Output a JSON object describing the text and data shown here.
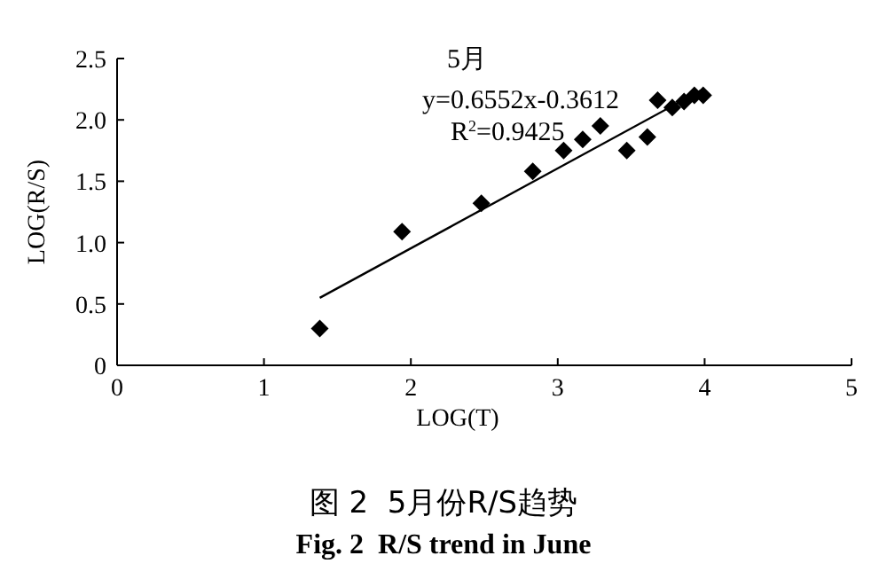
{
  "chart_data": {
    "type": "scatter",
    "title": "图 2  5月份R/S趋势",
    "subtitle": "Fig. 2  R/S trend in June",
    "xlabel": "LOG(T)",
    "ylabel": "LOG(R/S)",
    "annotations": [
      "5月",
      "y=0.6552x-0.3612",
      "R$^{2}$=0.9425"
    ],
    "marker": "diamond",
    "grid": false,
    "xlim": [
      0,
      5
    ],
    "xticks": [
      0,
      1,
      2,
      3,
      4,
      5
    ],
    "ylim": [
      0,
      2.5
    ],
    "yticks": [
      0,
      {
        "value": 0.5,
        "label": "0.5"
      },
      {
        "value": 1,
        "label": "1.0"
      },
      {
        "value": 1.5,
        "label": "1.5"
      },
      {
        "value": 2,
        "label": "2.0"
      },
      {
        "value": 2.5,
        "label": "2.5"
      }
    ],
    "series": [
      {
        "color": "#000000",
        "x": [
          1.38,
          1.94,
          2.48,
          2.83,
          3.04,
          3.17,
          3.29,
          3.47,
          3.61,
          3.68,
          3.78,
          3.86,
          3.93,
          3.99
        ],
        "values": [
          0.3,
          1.09,
          1.32,
          1.58,
          1.75,
          1.84,
          1.95,
          1.75,
          1.86,
          2.16,
          2.1,
          2.15,
          2.2,
          2.2
        ]
      },
      {
        "type": "line",
        "marker": "none",
        "line_style": "solid",
        "color": "#000000",
        "x": [
          1.38,
          3.99
        ],
        "values": [
          0.55,
          2.25
        ]
      }
    ]
  }
}
